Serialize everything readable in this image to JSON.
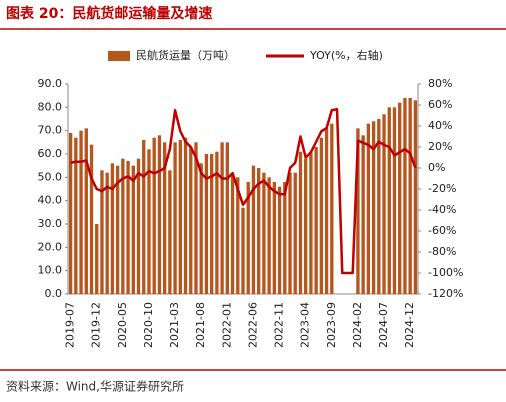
{
  "title": "图表 20：民航货邮运输量及增速",
  "source": "资料来源：Wind,华源证券研究所",
  "chart_data": {
    "type": "bar-line",
    "categories": [
      "2019-07",
      null,
      null,
      null,
      null,
      "2019-12",
      null,
      null,
      null,
      null,
      "2020-05",
      null,
      null,
      null,
      null,
      "2020-10",
      null,
      null,
      null,
      null,
      "2021-03",
      null,
      null,
      null,
      null,
      "2021-08",
      null,
      null,
      null,
      null,
      "2022-01",
      null,
      null,
      null,
      null,
      "2022-06",
      null,
      null,
      null,
      null,
      "2022-11",
      null,
      null,
      null,
      null,
      "2023-04",
      null,
      null,
      null,
      null,
      "2023-09",
      null,
      null,
      null,
      null,
      "2024-02",
      null,
      null,
      null,
      null,
      "2024-07",
      null,
      null,
      null,
      null,
      "2024-12",
      null
    ],
    "series": [
      {
        "name": "民航货运量（万吨）",
        "color": "#b5561f",
        "axis": "y",
        "values": [
          69,
          67,
          70,
          71,
          64,
          30,
          53,
          52,
          56,
          55,
          58,
          57,
          55,
          58,
          66,
          62,
          67,
          68,
          65,
          53,
          65,
          66,
          67,
          63,
          65,
          56,
          60,
          60,
          61,
          65,
          65,
          52,
          50,
          37,
          48,
          55,
          54,
          52,
          50,
          48,
          46,
          48,
          52,
          52,
          61,
          58,
          61,
          63,
          67,
          71,
          73,
          null,
          null,
          null,
          null,
          71,
          68,
          73,
          74,
          75,
          77,
          80,
          80,
          82,
          84,
          84,
          83
        ]
      },
      {
        "name": "YOY(%，右轴)",
        "color": "#c00000",
        "axis": "y2",
        "values": [
          5,
          6,
          6,
          7,
          -10,
          -20,
          -22,
          -18,
          -20,
          -14,
          -10,
          -8,
          -12,
          -5,
          -8,
          -3,
          -5,
          -3,
          0,
          18,
          55,
          35,
          25,
          20,
          10,
          -5,
          -10,
          -8,
          -5,
          -10,
          -10,
          -5,
          -20,
          -35,
          -28,
          -20,
          -15,
          -12,
          -18,
          -22,
          -25,
          -25,
          0,
          5,
          30,
          10,
          15,
          25,
          35,
          38,
          55,
          56,
          -100,
          -100,
          -100,
          26,
          24,
          22,
          18,
          25,
          22,
          20,
          12,
          15,
          18,
          14,
          0
        ]
      }
    ],
    "ylim": [
      0,
      90
    ],
    "yticks": [
      {
        "value": 0,
        "label": "0.0"
      },
      {
        "value": 10,
        "label": "10.0"
      },
      {
        "value": 20,
        "label": "20.0"
      },
      {
        "value": 30,
        "label": "30.0"
      },
      {
        "value": 40,
        "label": "40.0"
      },
      {
        "value": 50,
        "label": "50.0"
      },
      {
        "value": 60,
        "label": "60.0"
      },
      {
        "value": 70,
        "label": "70.0"
      },
      {
        "value": 80,
        "label": "80.0"
      },
      {
        "value": 90,
        "label": "90.0"
      }
    ],
    "y2lim": [
      -120,
      80
    ],
    "y2ticks": [
      {
        "value": -120,
        "label": "-120%"
      },
      {
        "value": -100,
        "label": "-100%"
      },
      {
        "value": -80,
        "label": "-80%"
      },
      {
        "value": -60,
        "label": "-60%"
      },
      {
        "value": -40,
        "label": "-40%"
      },
      {
        "value": -20,
        "label": "-20%"
      },
      {
        "value": 0,
        "label": "0%"
      },
      {
        "value": 20,
        "label": "20%"
      },
      {
        "value": 40,
        "label": "40%"
      },
      {
        "value": 60,
        "label": "60%"
      },
      {
        "value": 80,
        "label": "80%"
      }
    ]
  }
}
